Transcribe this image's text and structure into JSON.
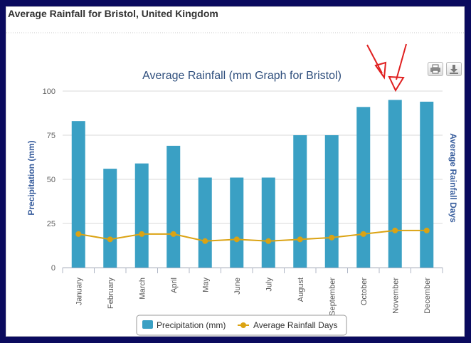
{
  "page": {
    "header": "Average Rainfall for Bristol, United Kingdom"
  },
  "toolbar": {
    "print_icon": "printer-icon",
    "download_icon": "download-icon"
  },
  "colors": {
    "bars": "#3aa0c4",
    "line": "#dba313",
    "axis_title": "#3a5f9e",
    "title": "#2f4f7d",
    "background": "#0a0a5e",
    "annotation_arrows": "#e02020"
  },
  "chart_data": {
    "type": "bar",
    "title": "Average Rainfall (mm Graph for Bristol)",
    "categories": [
      "January",
      "February",
      "March",
      "April",
      "May",
      "June",
      "July",
      "August",
      "September",
      "October",
      "November",
      "December"
    ],
    "series": [
      {
        "name": "Precipitation (mm)",
        "type": "bar",
        "axis": "left",
        "values": [
          83,
          56,
          59,
          69,
          51,
          51,
          51,
          75,
          75,
          91,
          95,
          94
        ]
      },
      {
        "name": "Average Rainfall Days",
        "type": "line",
        "axis": "right",
        "values": [
          19,
          16,
          19,
          19,
          15,
          16,
          15,
          16,
          17,
          19,
          21,
          21
        ]
      }
    ],
    "ylabel": "Precipitation (mm)",
    "y2label": "Average Rainfall Days",
    "ylim": [
      0,
      100
    ],
    "yticks": [
      0,
      25,
      50,
      75,
      100
    ],
    "grid": true,
    "legend_position": "bottom",
    "annotation": "two red arrows pointing at the November bar"
  }
}
